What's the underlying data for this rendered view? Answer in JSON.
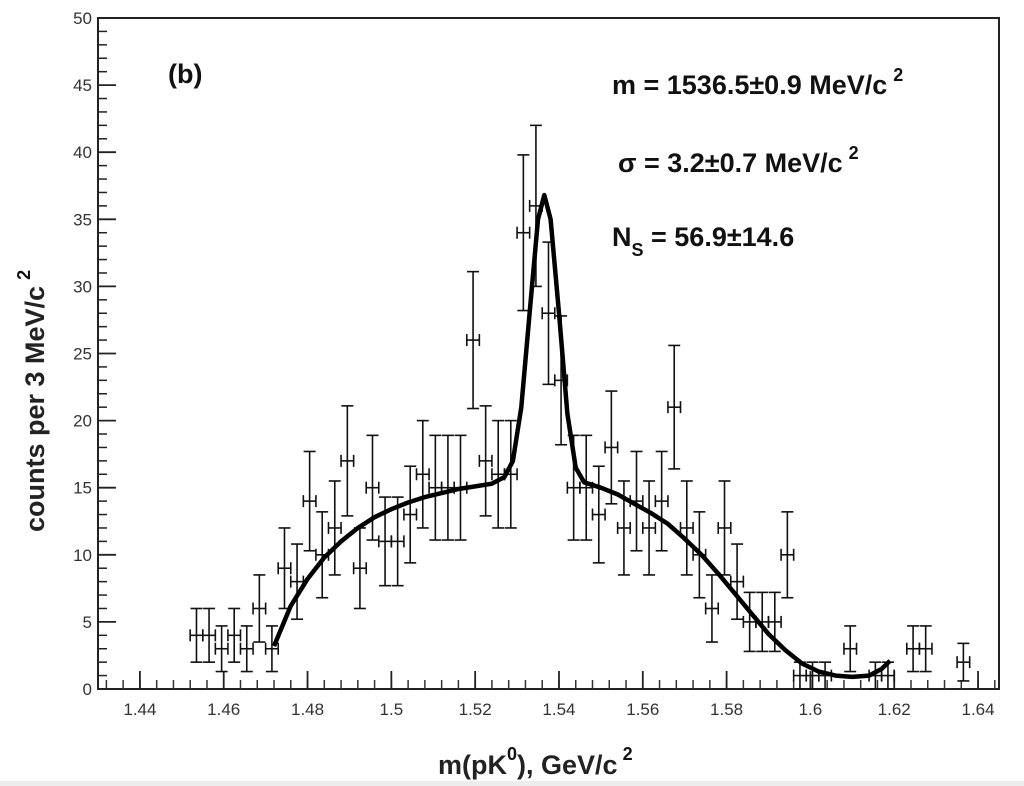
{
  "chart_data": {
    "type": "scatter",
    "panel_label": "(b)",
    "xlabel": {
      "base": "m(pK",
      "sup": "0",
      "rest": "), GeV/c",
      "sup2": "2"
    },
    "ylabel": {
      "text": "counts per 3 MeV/c",
      "sup": "2"
    },
    "xlim": [
      1.43,
      1.645
    ],
    "ylim": [
      0,
      50
    ],
    "x_ticks": [
      "1.44",
      "1.46",
      "1.48",
      "1.5",
      "1.52",
      "1.54",
      "1.56",
      "1.58",
      "1.6",
      "1.62",
      "1.64"
    ],
    "y_ticks": [
      "0",
      "5",
      "10",
      "15",
      "20",
      "25",
      "30",
      "35",
      "40",
      "45",
      "50"
    ],
    "annotations": {
      "mass": {
        "text": "m = 1536.5±0.9 MeV/c",
        "sup": "2"
      },
      "sigma": {
        "text": "σ = 3.2±0.7 MeV/c",
        "sup": "2"
      },
      "ns": {
        "base": "N",
        "sub": "S",
        "rest": " = 56.9±14.6"
      }
    },
    "series": [
      {
        "kind": "data",
        "x_err": 0.0015,
        "points": [
          [
            1.4535,
            4,
            2
          ],
          [
            1.4565,
            4,
            2
          ],
          [
            1.4595,
            3,
            1.7
          ],
          [
            1.4625,
            4,
            2
          ],
          [
            1.4655,
            3,
            1.7
          ],
          [
            1.4685,
            6,
            2.5
          ],
          [
            1.4715,
            3,
            1.7
          ],
          [
            1.4745,
            9,
            3
          ],
          [
            1.4775,
            8,
            2.8
          ],
          [
            1.4805,
            14,
            3.7
          ],
          [
            1.4835,
            10,
            3.2
          ],
          [
            1.4865,
            12,
            3.5
          ],
          [
            1.4895,
            17,
            4.1
          ],
          [
            1.4925,
            9,
            3
          ],
          [
            1.4955,
            15,
            3.9
          ],
          [
            1.4985,
            11,
            3.3
          ],
          [
            1.5015,
            11,
            3.3
          ],
          [
            1.5045,
            13,
            3.6
          ],
          [
            1.5075,
            16,
            4
          ],
          [
            1.5105,
            15,
            3.9
          ],
          [
            1.5135,
            15,
            3.9
          ],
          [
            1.5165,
            15,
            3.9
          ],
          [
            1.5195,
            26,
            5.1
          ],
          [
            1.5225,
            17,
            4.1
          ],
          [
            1.5255,
            16,
            4
          ],
          [
            1.5285,
            16,
            4
          ],
          [
            1.5315,
            34,
            5.8
          ],
          [
            1.5345,
            36,
            6
          ],
          [
            1.5375,
            28,
            5.3
          ],
          [
            1.5405,
            23,
            4.8
          ],
          [
            1.5435,
            15,
            3.9
          ],
          [
            1.5465,
            15,
            3.9
          ],
          [
            1.5495,
            13,
            3.6
          ],
          [
            1.5525,
            18,
            4.2
          ],
          [
            1.5555,
            12,
            3.5
          ],
          [
            1.5585,
            14,
            3.7
          ],
          [
            1.5615,
            12,
            3.5
          ],
          [
            1.5645,
            14,
            3.7
          ],
          [
            1.5675,
            21,
            4.6
          ],
          [
            1.5705,
            12,
            3.5
          ],
          [
            1.5735,
            10,
            3.2
          ],
          [
            1.5765,
            6,
            2.5
          ],
          [
            1.5795,
            12,
            3.5
          ],
          [
            1.5825,
            8,
            2.8
          ],
          [
            1.5855,
            5,
            2.2
          ],
          [
            1.5885,
            5,
            2.2
          ],
          [
            1.5915,
            5,
            2.2
          ],
          [
            1.5945,
            10,
            3.2
          ],
          [
            1.5975,
            1,
            1
          ],
          [
            1.6005,
            1,
            1
          ],
          [
            1.6035,
            1,
            1
          ],
          [
            1.6095,
            3,
            1.7
          ],
          [
            1.6155,
            1,
            1
          ],
          [
            1.6185,
            1,
            1
          ],
          [
            1.6245,
            3,
            1.7
          ],
          [
            1.6275,
            3,
            1.7
          ],
          [
            1.6365,
            2,
            1.4
          ]
        ]
      },
      {
        "kind": "fit",
        "points": [
          [
            1.472,
            3.2
          ],
          [
            1.476,
            6.2
          ],
          [
            1.48,
            8.2
          ],
          [
            1.484,
            9.8
          ],
          [
            1.488,
            11
          ],
          [
            1.492,
            12
          ],
          [
            1.496,
            12.8
          ],
          [
            1.5,
            13.4
          ],
          [
            1.504,
            13.9
          ],
          [
            1.508,
            14.3
          ],
          [
            1.512,
            14.6
          ],
          [
            1.516,
            14.9
          ],
          [
            1.52,
            15.1
          ],
          [
            1.524,
            15.3
          ],
          [
            1.527,
            15.8
          ],
          [
            1.529,
            17
          ],
          [
            1.531,
            21
          ],
          [
            1.533,
            28
          ],
          [
            1.535,
            35
          ],
          [
            1.5365,
            36.8
          ],
          [
            1.538,
            35
          ],
          [
            1.54,
            28
          ],
          [
            1.542,
            20.5
          ],
          [
            1.544,
            16.5
          ],
          [
            1.546,
            15.4
          ],
          [
            1.55,
            15
          ],
          [
            1.554,
            14.5
          ],
          [
            1.558,
            13.8
          ],
          [
            1.562,
            13.1
          ],
          [
            1.566,
            12.3
          ],
          [
            1.57,
            11.2
          ],
          [
            1.574,
            10
          ],
          [
            1.578,
            8.6
          ],
          [
            1.582,
            7.1
          ],
          [
            1.586,
            5.6
          ],
          [
            1.59,
            4.1
          ],
          [
            1.594,
            2.9
          ],
          [
            1.598,
            1.9
          ],
          [
            1.602,
            1.3
          ],
          [
            1.606,
            1
          ],
          [
            1.61,
            0.9
          ],
          [
            1.614,
            1
          ],
          [
            1.617,
            1.5
          ],
          [
            1.619,
            2.1
          ]
        ]
      }
    ]
  }
}
